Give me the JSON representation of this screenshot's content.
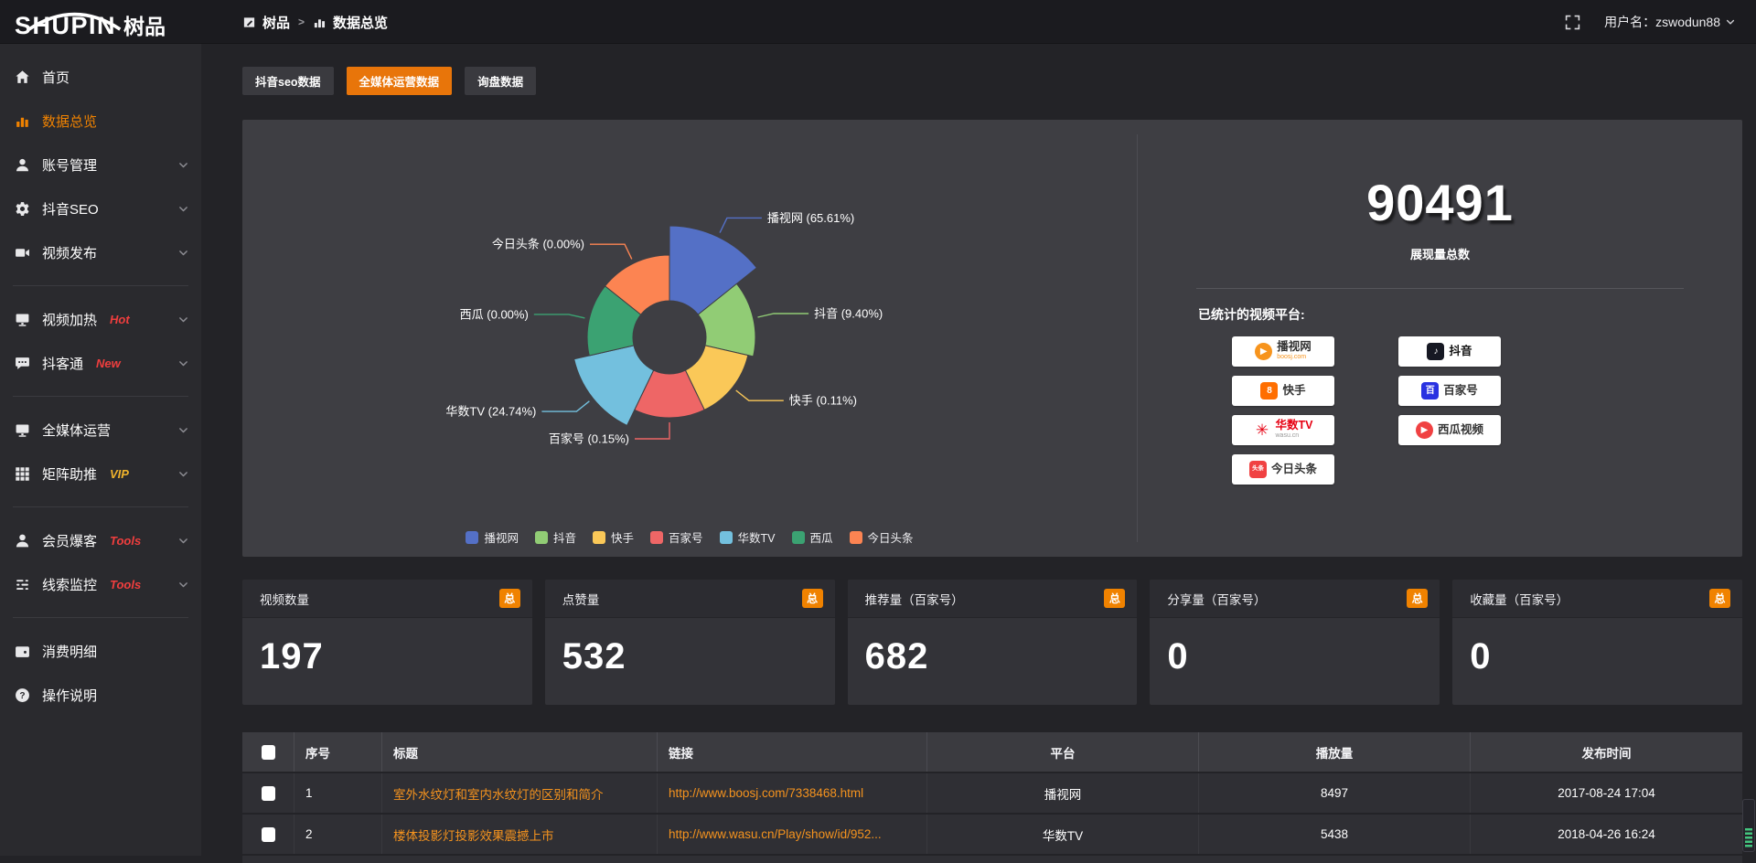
{
  "logo": {
    "brand": "SHUPIN",
    "suffix": "树品"
  },
  "topbar": {
    "breadcrumb_root": "树品",
    "breadcrumb_sep": ">",
    "breadcrumb_current": "数据总览",
    "username": "用户名：zswodun88"
  },
  "sidebar": {
    "items": [
      {
        "name": "home",
        "label": "首页",
        "icon": "home-icon"
      },
      {
        "name": "data-overview",
        "label": "数据总览",
        "icon": "bar-chart-icon",
        "active": true
      },
      {
        "name": "account-manage",
        "label": "账号管理",
        "icon": "user-icon",
        "expandable": true
      },
      {
        "name": "douyin-seo",
        "label": "抖音SEO",
        "icon": "gear-icon",
        "expandable": true
      },
      {
        "name": "video-publish",
        "label": "视频发布",
        "icon": "video-publish-icon",
        "expandable": true
      },
      {
        "divider": true
      },
      {
        "name": "video-heating",
        "label": "视频加热",
        "icon": "monitor-icon",
        "tag": "Hot",
        "tag_color": "#f03e3e",
        "expandable": true
      },
      {
        "name": "douketong",
        "label": "抖客通",
        "icon": "comment-icon",
        "tag": "New",
        "tag_color": "#f03e3e",
        "expandable": true
      },
      {
        "divider": true
      },
      {
        "name": "media-operation",
        "label": "全媒体运营",
        "icon": "monitor-icon",
        "expandable": true
      },
      {
        "name": "matrix-boost",
        "label": "矩阵助推",
        "icon": "grid-icon",
        "tag": "VIP",
        "tag_color": "#f0b32c",
        "expandable": true
      },
      {
        "divider": true
      },
      {
        "name": "member-baoke",
        "label": "会员爆客",
        "icon": "member-icon",
        "tag": "Tools",
        "tag_color": "#f03e3e",
        "expandable": true
      },
      {
        "name": "clue-monitor",
        "label": "线索监控",
        "icon": "sliders-icon",
        "tag": "Tools",
        "tag_color": "#f03e3e",
        "expandable": true
      },
      {
        "divider": true
      },
      {
        "name": "consume-detail",
        "label": "消费明细",
        "icon": "wallet-icon"
      },
      {
        "name": "instructions",
        "label": "操作说明",
        "icon": "question-icon"
      }
    ]
  },
  "tabs": [
    {
      "name": "douyin-seo-data",
      "label": "抖音seo数据",
      "active": false
    },
    {
      "name": "media-operation-data",
      "label": "全媒体运营数据",
      "active": true
    },
    {
      "name": "inquiry-data",
      "label": "询盘数据",
      "active": false
    }
  ],
  "chart_data": {
    "type": "pie",
    "subtype": "rose-donut",
    "categories": [
      "播视网",
      "抖音",
      "快手",
      "百家号",
      "华数TV",
      "西瓜",
      "今日头条"
    ],
    "values": [
      65.61,
      9.4,
      0.11,
      0.15,
      24.74,
      0.0,
      0.0
    ],
    "unit": "%",
    "labels": [
      "播视网 (65.61%)",
      "抖音 (9.40%)",
      "快手 (0.11%)",
      "百家号 (0.15%)",
      "华数TV (24.74%)",
      "西瓜 (0.00%)",
      "今日头条 (0.00%)"
    ],
    "colors": [
      "#5470c6",
      "#91cc75",
      "#fac858",
      "#ee6666",
      "#73c0de",
      "#3ba272",
      "#fc8452"
    ],
    "legend": [
      "播视网",
      "抖音",
      "快手",
      "百家号",
      "华数TV",
      "西瓜",
      "今日头条"
    ],
    "legend_position": "bottom",
    "center": [
      467,
      238
    ],
    "inner_radius": 40,
    "rose_radii": [
      122,
      94,
      88,
      88,
      107,
      90,
      90
    ]
  },
  "summary": {
    "total_value": "90491",
    "total_caption": "展现量总数",
    "platforms_label": "已统计的视频平台:",
    "platforms": [
      {
        "name": "播视网",
        "sub": "boosj.com",
        "icon": "boosj-logo-icon",
        "shape": "circle",
        "bg": "#f7941d",
        "glyph": "▶",
        "name_color": "#333",
        "sub_color": "#f7941d",
        "column": 1
      },
      {
        "name": "快手",
        "sub": "",
        "icon": "kuaishou-logo-icon",
        "shape": "square",
        "bg": "#ff6e00",
        "glyph": "8",
        "name_color": "#333",
        "column": 1
      },
      {
        "name": "华数TV",
        "sub": "wasu.cn",
        "icon": "wasu-logo-icon",
        "shape": "bare",
        "bg": "transparent",
        "glyph": "✳",
        "glyph_color": "#e60012",
        "name_color": "#e60012",
        "sub_color": "#999999",
        "column": 1
      },
      {
        "name": "今日头条",
        "sub": "",
        "icon": "toutiao-logo-icon",
        "shape": "square",
        "bg": "#f04142",
        "glyph": "头条",
        "name_color": "#333",
        "column": 1
      },
      {
        "name": "抖音",
        "sub": "",
        "icon": "douyin-logo-icon",
        "shape": "square",
        "bg": "#161823",
        "glyph": "♪",
        "name_color": "#111",
        "column": 2
      },
      {
        "name": "百家号",
        "sub": "",
        "icon": "baijiahao-logo-icon",
        "shape": "square",
        "bg": "#2932e1",
        "glyph": "百",
        "name_color": "#333",
        "column": 2
      },
      {
        "name": "西瓜视频",
        "sub": "",
        "icon": "xigua-logo-icon",
        "shape": "circle",
        "bg": "#f04142",
        "glyph": "▶",
        "name_color": "#333",
        "column": 2
      }
    ]
  },
  "stat_cards": [
    {
      "name": "video-count",
      "title": "视频数量",
      "badge": "总",
      "value": "197"
    },
    {
      "name": "like-count",
      "title": "点赞量",
      "badge": "总",
      "value": "532"
    },
    {
      "name": "recommend-count",
      "title": "推荐量（百家号）",
      "badge": "总",
      "value": "682"
    },
    {
      "name": "share-count",
      "title": "分享量（百家号）",
      "badge": "总",
      "value": "0"
    },
    {
      "name": "favorite-count",
      "title": "收藏量（百家号）",
      "badge": "总",
      "value": "0"
    }
  ],
  "table": {
    "headers": [
      "序号",
      "标题",
      "链接",
      "平台",
      "播放量",
      "发布时间"
    ],
    "rows": [
      {
        "num": "1",
        "title": "室外水纹灯和室内水纹灯的区别和简介",
        "link": "http://www.boosj.com/7338468.html",
        "platform": "播视网",
        "views": "8497",
        "time": "2017-08-24 17:04"
      },
      {
        "num": "2",
        "title": "楼体投影灯投影效果震撼上市",
        "link": "http://www.wasu.cn/Play/show/id/952...",
        "platform": "华数TV",
        "views": "5438",
        "time": "2018-04-26 16:24"
      }
    ]
  },
  "colors": {
    "accent_orange": "#e8750a",
    "sidebar_active": "#f08200",
    "badge_orange": "#f08200",
    "link_orange": "#f5931e",
    "tag_red": "#f03e3e",
    "tag_gold": "#f0b32c"
  }
}
